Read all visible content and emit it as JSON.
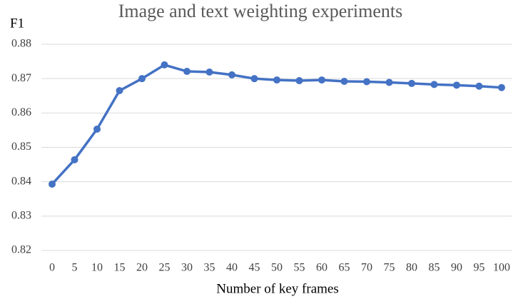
{
  "chart_data": {
    "type": "line",
    "title": "Image and text weighting experiments",
    "y_label": "F1",
    "x_label": "Number of key frames",
    "categories": [
      "0",
      "5",
      "10",
      "15",
      "20",
      "25",
      "30",
      "35",
      "40",
      "45",
      "50",
      "55",
      "60",
      "65",
      "70",
      "75",
      "80",
      "85",
      "90",
      "95",
      "100"
    ],
    "series": [
      {
        "name": "F1",
        "color": "#4472c4",
        "values": [
          0.8393,
          0.8464,
          0.8553,
          0.8665,
          0.87,
          0.874,
          0.8721,
          0.8719,
          0.8711,
          0.87,
          0.8696,
          0.8694,
          0.8696,
          0.8692,
          0.8691,
          0.8689,
          0.8686,
          0.8683,
          0.8681,
          0.8678,
          0.8674
        ]
      }
    ],
    "ylim": [
      0.82,
      0.88
    ],
    "yticks": [
      0.82,
      0.83,
      0.84,
      0.85,
      0.86,
      0.87,
      0.88
    ],
    "grid": true
  }
}
